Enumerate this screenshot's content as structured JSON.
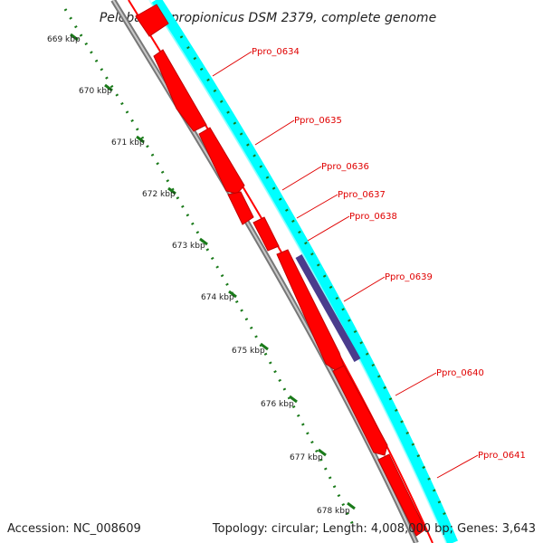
{
  "title": "Pelobacter propionicus DSM 2379, complete genome",
  "footer": {
    "accession": "Accession: NC_008609",
    "summary": "Topology: circular; Length: 4,008,000 bp; Genes: 3,643"
  },
  "colors": {
    "backbone": "#888888",
    "cds_reverse": "#ff0000",
    "cds_forward": "#00ffff",
    "rna_feature": "#4b3c8c",
    "label": "#e00000",
    "tick": "#1a7a1a"
  },
  "ticks": [
    "669 kbp",
    "670 kbp",
    "671 kbp",
    "672 kbp",
    "673 kbp",
    "674 kbp",
    "675 kbp",
    "676 kbp",
    "677 kbp",
    "678 kbp"
  ],
  "gene_labels": [
    "Ppro_0634",
    "Ppro_0635",
    "Ppro_0636",
    "Ppro_0637",
    "Ppro_0638",
    "Ppro_0639",
    "Ppro_0640",
    "Ppro_0641"
  ]
}
